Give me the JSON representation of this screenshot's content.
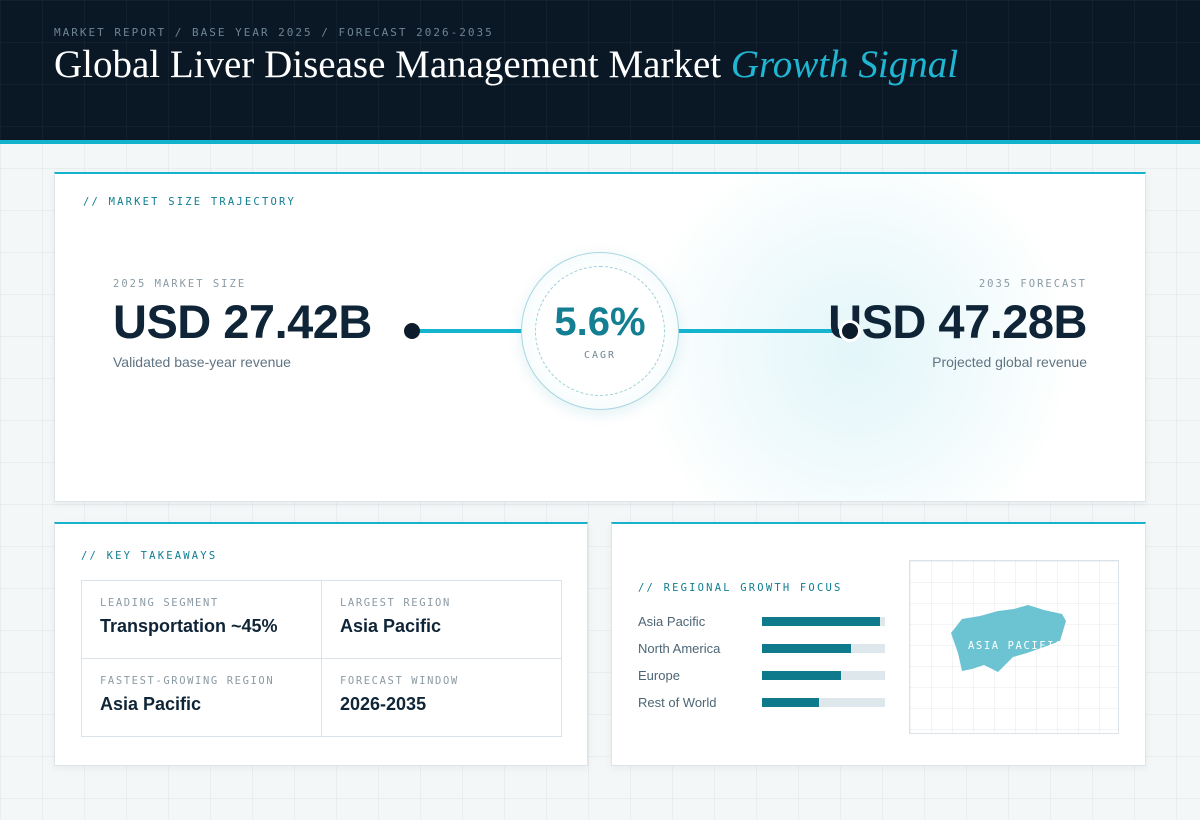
{
  "header": {
    "kicker": "MARKET REPORT / BASE YEAR 2025 / FORECAST 2026-2035",
    "title_main": "Global Liver Disease Management Market",
    "title_accent": "Growth Signal"
  },
  "trajectory": {
    "label": "// MARKET SIZE TRAJECTORY",
    "start": {
      "label": "2025 MARKET SIZE",
      "value": "USD 27.42B",
      "caption": "Validated base-year revenue"
    },
    "end": {
      "label": "2035 FORECAST",
      "value": "USD 47.28B",
      "caption": "Projected global revenue"
    },
    "cagr": {
      "value": "5.6%",
      "label": "CAGR"
    }
  },
  "takeaways": {
    "label": "// KEY TAKEAWAYS",
    "items": [
      {
        "label": "LEADING SEGMENT",
        "value": "Transportation ~45%"
      },
      {
        "label": "LARGEST REGION",
        "value": "Asia Pacific"
      },
      {
        "label": "FASTEST-GROWING REGION",
        "value": "Asia Pacific"
      },
      {
        "label": "FORECAST WINDOW",
        "value": "2026-2035"
      }
    ]
  },
  "regional": {
    "label": "// REGIONAL GROWTH FOCUS",
    "regions": [
      {
        "name": "Asia Pacific",
        "share": 0.96
      },
      {
        "name": "North America",
        "share": 0.72
      },
      {
        "name": "Europe",
        "share": 0.64
      },
      {
        "name": "Rest of World",
        "share": 0.46
      }
    ],
    "map_label": "ASIA PACIFIC",
    "map_color": "#6cc3d2",
    "bar_color": "#0f7a8c"
  }
}
